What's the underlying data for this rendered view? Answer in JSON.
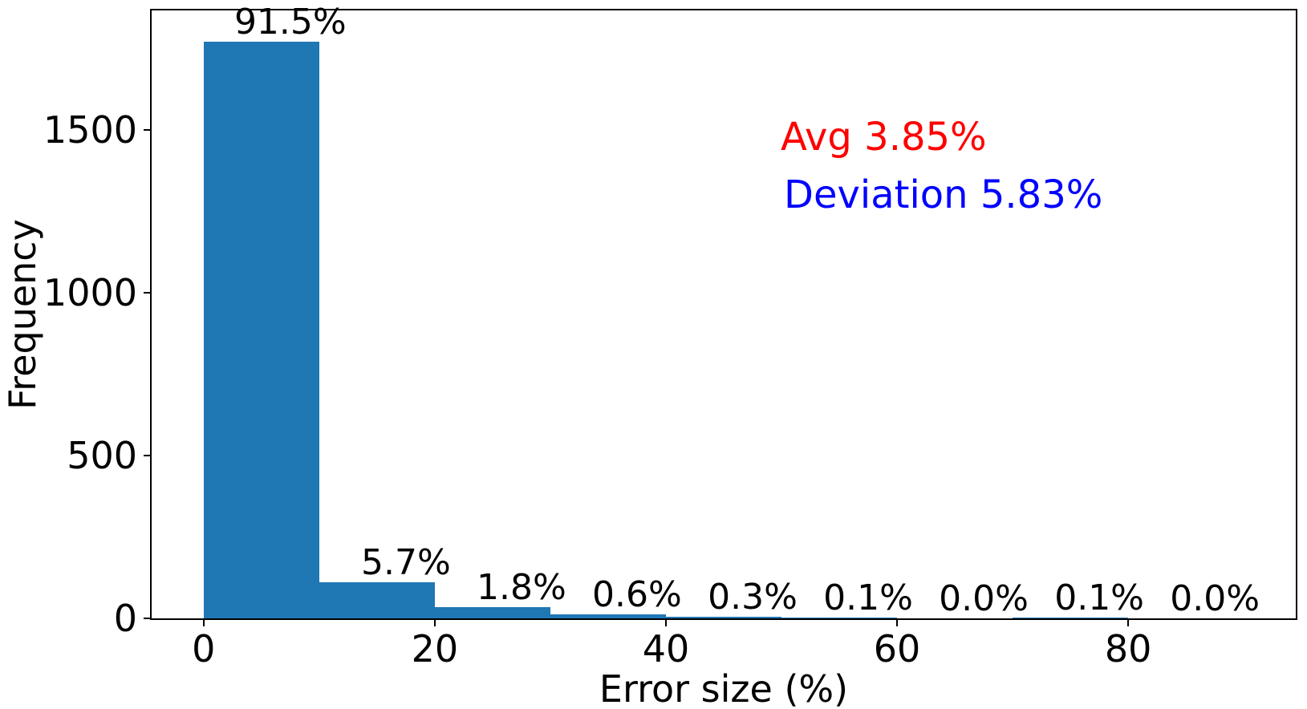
{
  "figure": {
    "background": "#ffffff"
  },
  "chart_data": {
    "type": "bar",
    "chart_kind": "histogram",
    "title": "",
    "xlabel": "Error size (%)",
    "ylabel": "Frequency",
    "bar_color": "#1f77b4",
    "bin_edges": [
      0,
      10,
      20,
      30,
      40,
      50,
      60,
      70,
      80,
      90
    ],
    "frequencies": [
      1772,
      110,
      35,
      12,
      6,
      2,
      0,
      2,
      0
    ],
    "bar_labels": [
      "91.5%",
      "5.7%",
      "1.8%",
      "0.6%",
      "0.3%",
      "0.1%",
      "0.0%",
      "0.1%",
      "0.0%"
    ],
    "xlim": [
      -4.5,
      94.5
    ],
    "ylim": [
      0,
      1868
    ],
    "x_ticks": [
      0,
      20,
      40,
      60,
      80
    ],
    "x_tick_labels": [
      "0",
      "20",
      "40",
      "60",
      "80"
    ],
    "y_ticks": [
      0,
      500,
      1000,
      1500
    ],
    "y_tick_labels": [
      "0",
      "500",
      "1000",
      "1500"
    ],
    "grid": false,
    "legend": null,
    "annotations": [
      {
        "text": "Avg 3.85%",
        "color": "#ff0000"
      },
      {
        "text": "Deviation 5.83%",
        "color": "#0000ff"
      }
    ]
  }
}
